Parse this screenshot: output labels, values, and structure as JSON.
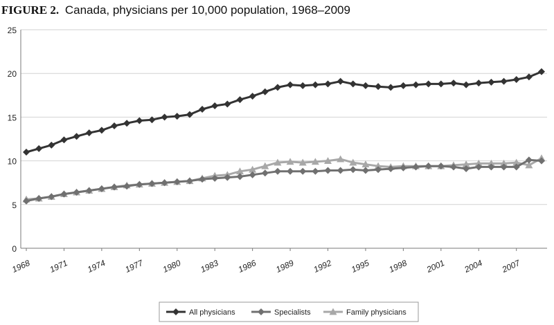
{
  "chart_data": {
    "type": "line",
    "title_label": "FIGURE 2.",
    "title": "Canada, physicians per 10,000 population, 1968–2009",
    "xlabel": "",
    "ylabel": "",
    "ylim": [
      0,
      25
    ],
    "yticks": [
      0,
      5,
      10,
      15,
      20,
      25
    ],
    "grid": true,
    "legend_position": "bottom-center",
    "x_tick_labels": [
      "1968",
      "1971",
      "1974",
      "1977",
      "1980",
      "1983",
      "1986",
      "1989",
      "1992",
      "1995",
      "1998",
      "2001",
      "2004",
      "2007"
    ],
    "x": [
      1968,
      1969,
      1970,
      1971,
      1972,
      1973,
      1974,
      1975,
      1976,
      1977,
      1978,
      1979,
      1980,
      1981,
      1982,
      1983,
      1984,
      1985,
      1986,
      1987,
      1988,
      1989,
      1990,
      1991,
      1992,
      1993,
      1994,
      1995,
      1996,
      1997,
      1998,
      1999,
      2000,
      2001,
      2002,
      2003,
      2004,
      2005,
      2006,
      2007,
      2008,
      2009
    ],
    "series": [
      {
        "name": "All physicians",
        "color": "#333333",
        "marker": "diamond",
        "values": [
          11.0,
          11.4,
          11.8,
          12.4,
          12.8,
          13.2,
          13.5,
          14.0,
          14.3,
          14.6,
          14.7,
          15.0,
          15.1,
          15.3,
          15.9,
          16.3,
          16.5,
          17.0,
          17.4,
          17.9,
          18.4,
          18.7,
          18.6,
          18.7,
          18.8,
          19.1,
          18.8,
          18.6,
          18.5,
          18.4,
          18.6,
          18.7,
          18.8,
          18.8,
          18.9,
          18.7,
          18.9,
          19.0,
          19.1,
          19.3,
          19.6,
          20.2
        ]
      },
      {
        "name": "Specialists",
        "color": "#707070",
        "marker": "diamond",
        "values": [
          5.4,
          5.7,
          5.9,
          6.2,
          6.4,
          6.6,
          6.8,
          7.0,
          7.1,
          7.3,
          7.4,
          7.5,
          7.6,
          7.7,
          7.9,
          8.0,
          8.1,
          8.2,
          8.4,
          8.6,
          8.8,
          8.8,
          8.8,
          8.8,
          8.9,
          8.9,
          9.0,
          8.9,
          9.0,
          9.1,
          9.2,
          9.3,
          9.4,
          9.4,
          9.3,
          9.1,
          9.3,
          9.3,
          9.3,
          9.3,
          10.1,
          10.0
        ]
      },
      {
        "name": "Family physicians",
        "color": "#a8a8a8",
        "marker": "triangle",
        "values": [
          5.6,
          5.7,
          5.9,
          6.2,
          6.4,
          6.6,
          6.8,
          7.0,
          7.2,
          7.3,
          7.4,
          7.5,
          7.6,
          7.7,
          8.0,
          8.3,
          8.4,
          8.8,
          9.0,
          9.4,
          9.8,
          9.9,
          9.8,
          9.9,
          10.0,
          10.2,
          9.8,
          9.6,
          9.4,
          9.3,
          9.4,
          9.4,
          9.4,
          9.4,
          9.5,
          9.6,
          9.7,
          9.7,
          9.7,
          9.8,
          9.5,
          10.3
        ]
      }
    ]
  }
}
